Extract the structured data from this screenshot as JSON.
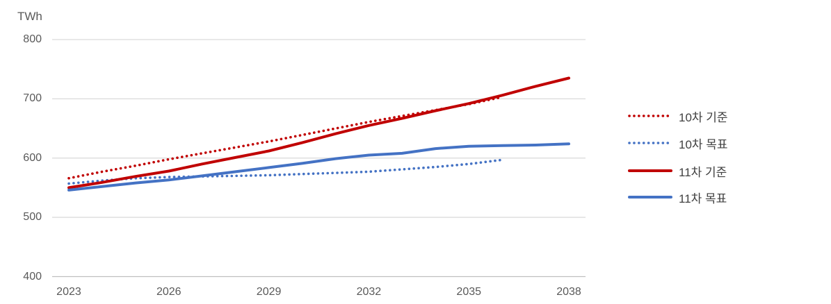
{
  "chart_data": {
    "type": "line",
    "title": "",
    "unit_label": "TWh",
    "xlabel": "",
    "ylabel": "TWh",
    "ylim": [
      400,
      800
    ],
    "y_ticks": [
      400,
      500,
      600,
      700,
      800
    ],
    "x_start_year": 2023,
    "x_end_year": 2038,
    "x_tick_labels": [
      "2023",
      "2026",
      "2029",
      "2032",
      "2035",
      "2038"
    ],
    "x_tick_indices": [
      0,
      3,
      6,
      9,
      12,
      15
    ],
    "grid": "horizontal",
    "legend_position": "right",
    "series": [
      {
        "name": "10차 기준",
        "style": "dotted",
        "color": "#C00000",
        "start_year": 2023,
        "end_year": 2036,
        "values": [
          566,
          577,
          587,
          598,
          608,
          618,
          628,
          639,
          650,
          661,
          671,
          681,
          691,
          703
        ]
      },
      {
        "name": "10차 목표",
        "style": "dotted",
        "color": "#4472C4",
        "start_year": 2023,
        "end_year": 2036,
        "values": [
          557,
          562,
          566,
          568,
          569,
          570,
          571,
          573,
          575,
          577,
          581,
          585,
          590,
          597
        ]
      },
      {
        "name": "11차 기준",
        "style": "solid",
        "color": "#C00000",
        "start_year": 2023,
        "end_year": 2038,
        "values": [
          550,
          559,
          569,
          578,
          590,
          601,
          612,
          626,
          641,
          655,
          667,
          680,
          692,
          706,
          721,
          735
        ]
      },
      {
        "name": "11차 목표",
        "style": "solid",
        "color": "#4472C4",
        "start_year": 2023,
        "end_year": 2038,
        "values": [
          546,
          552,
          558,
          563,
          570,
          577,
          584,
          591,
          599,
          605,
          608,
          616,
          620,
          621,
          622,
          624
        ]
      }
    ]
  },
  "colors": {
    "red": "#C00000",
    "blue": "#4472C4",
    "gridline": "#D9D9D9",
    "axis_line": "#BFBFBF",
    "axis_text": "#595959",
    "legend_text": "#404040",
    "background": "#FFFFFF"
  }
}
